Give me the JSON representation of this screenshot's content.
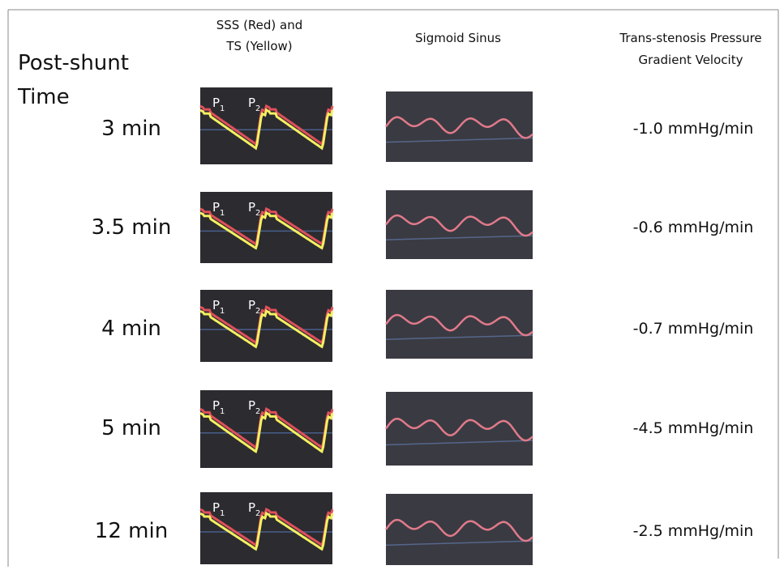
{
  "header": {
    "sss_line1": "SSS (Red) and",
    "sss_line2": "TS (Yellow)",
    "sigmoid": "Sigmoid Sinus",
    "gradient_line1": "Trans-stenosis Pressure",
    "gradient_line2": "Gradient Velocity",
    "time_line1": "Post-shunt",
    "time_line2": "Time"
  },
  "rows": [
    {
      "time": "3 min",
      "gradient": "-1.0 mmHg/min",
      "p_labels": [
        {
          "base": "P",
          "sub": "1"
        },
        {
          "base": "P",
          "sub": "2"
        }
      ]
    },
    {
      "time": "3.5 min",
      "gradient": "-0.6 mmHg/min",
      "p_labels": [
        {
          "base": "P",
          "sub": "1"
        },
        {
          "base": "P",
          "sub": "2"
        }
      ]
    },
    {
      "time": "4 min",
      "gradient": "-0.7 mmHg/min",
      "p_labels": [
        {
          "base": "P",
          "sub": "1"
        },
        {
          "base": "P",
          "sub": "2"
        }
      ]
    },
    {
      "time": "5 min",
      "gradient": "-4.5 mmHg/min",
      "p_labels": [
        {
          "base": "P",
          "sub": "1"
        },
        {
          "base": "P",
          "sub": "2"
        }
      ]
    },
    {
      "time": "12 min",
      "gradient": "-2.5 mmHg/min",
      "p_labels": [
        {
          "base": "P",
          "sub": "1"
        },
        {
          "base": "P",
          "sub": "2"
        }
      ]
    }
  ]
}
